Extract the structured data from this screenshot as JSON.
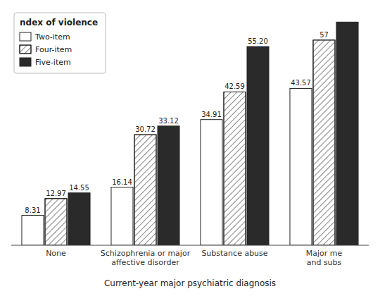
{
  "chart_data": {
    "type": "bar",
    "categories": [
      "None",
      "Schizophrenia or major\naffective disorder",
      "Substance abuse",
      "Major me\nand subs"
    ],
    "series": [
      {
        "name": "Two-item",
        "color": "#ffffff",
        "values": [
          8.31,
          16.14,
          34.91,
          43.57
        ],
        "value_labels": [
          "8.31",
          "16.14",
          "34.91",
          "43.57"
        ]
      },
      {
        "name": "Four-item",
        "color": "#ffffff",
        "values": [
          12.97,
          30.72,
          42.59,
          57.0
        ],
        "value_labels": [
          "12.97",
          "30.72",
          "42.59",
          "57"
        ]
      },
      {
        "name": "Five-item",
        "color": "#2a2a2a",
        "values": [
          14.55,
          33.12,
          55.2,
          62.0
        ],
        "value_labels": [
          "14.55",
          "33.12",
          "55.20",
          null
        ]
      }
    ],
    "legend_title": "ndex of violence",
    "x_label": "Current-year major psychiatric diagnosis",
    "ylim": [
      0,
      65
    ],
    "data_labels": true,
    "tick_labels": "x",
    "legend": "upper left",
    "grid": false
  }
}
